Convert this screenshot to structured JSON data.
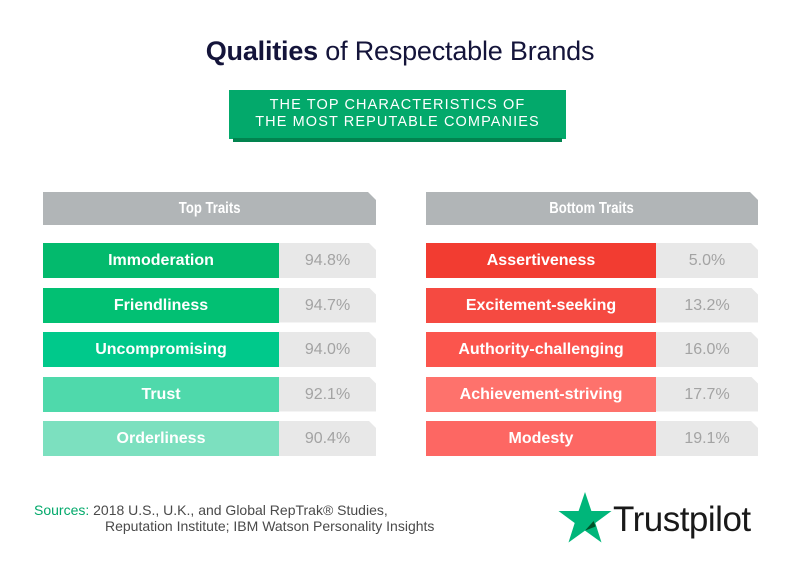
{
  "title": {
    "bold": "Qualities",
    "rest": " of Respectable Brands"
  },
  "banner": {
    "line1": "THE TOP CHARACTERISTICS OF",
    "line2": "THE MOST REPUTABLE COMPANIES"
  },
  "top_traits": {
    "header": "Top Traits",
    "items": [
      {
        "label": "Immoderation",
        "value": "94.8%",
        "color": "#03ba6d"
      },
      {
        "label": "Friendliness",
        "value": "94.7%",
        "color": "#02c073"
      },
      {
        "label": "Uncompromising",
        "value": "94.0%",
        "color": "#00c98b"
      },
      {
        "label": "Trust",
        "value": "92.1%",
        "color": "#4fd9ab"
      },
      {
        "label": "Orderliness",
        "value": "90.4%",
        "color": "#7ce0bf"
      }
    ]
  },
  "bottom_traits": {
    "header": "Bottom Traits",
    "items": [
      {
        "label": "Assertiveness",
        "value": "5.0%",
        "color": "#f23c31"
      },
      {
        "label": "Excitement-seeking",
        "value": "13.2%",
        "color": "#f54a41"
      },
      {
        "label": "Authority-challenging",
        "value": "16.0%",
        "color": "#fb554d"
      },
      {
        "label": "Achievement-striving",
        "value": "17.7%",
        "color": "#fe726c"
      },
      {
        "label": "Modesty",
        "value": "19.1%",
        "color": "#fd6763"
      }
    ]
  },
  "sources": {
    "label": "Sources:",
    "line1": " 2018 U.S., U.K., and Global RepTrak® Studies,",
    "line2": "Reputation Institute; IBM Watson Personality Insights"
  },
  "brand": {
    "name": "Trustpilot",
    "icon": "star-icon",
    "color": "#00b67a"
  },
  "chart_data": [
    {
      "type": "table",
      "title": "Qualities of Respectable Brands — Top Traits",
      "subtitle": "THE TOP CHARACTERISTICS OF THE MOST REPUTABLE COMPANIES",
      "categories": [
        "Immoderation",
        "Friendliness",
        "Uncompromising",
        "Trust",
        "Orderliness"
      ],
      "values": [
        94.8,
        94.7,
        94.0,
        92.1,
        90.4
      ],
      "unit": "%"
    },
    {
      "type": "table",
      "title": "Qualities of Respectable Brands — Bottom Traits",
      "categories": [
        "Assertiveness",
        "Excitement-seeking",
        "Authority-challenging",
        "Achievement-striving",
        "Modesty"
      ],
      "values": [
        5.0,
        13.2,
        16.0,
        17.7,
        19.1
      ],
      "unit": "%"
    }
  ]
}
